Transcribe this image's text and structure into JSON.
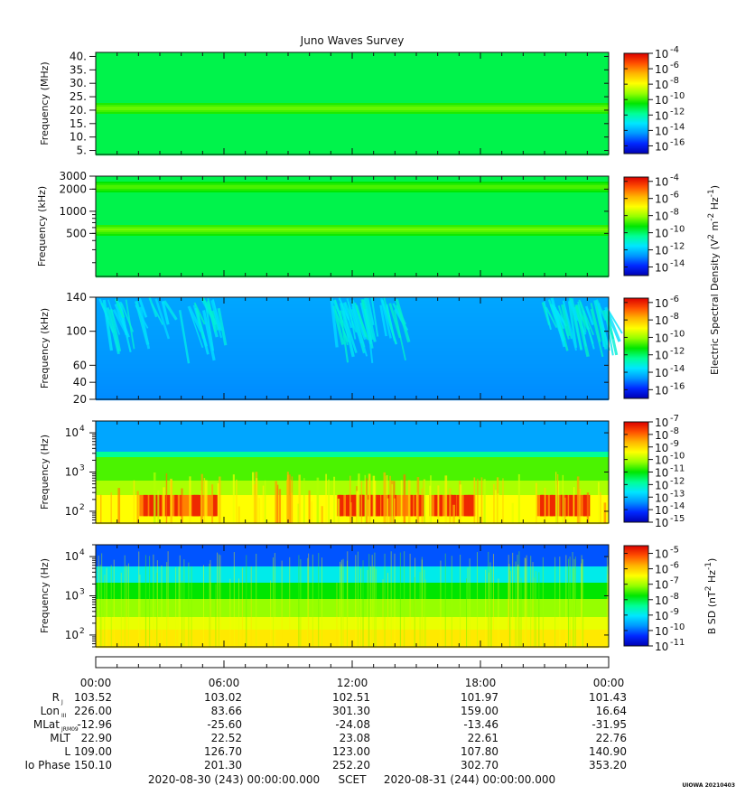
{
  "title": "Juno Waves Survey",
  "stamp": "UIOWA 20210403",
  "colors": {
    "scale": [
      "#0000b4",
      "#0028ff",
      "#0096ff",
      "#00e6ff",
      "#00ff96",
      "#00e600",
      "#96ff00",
      "#ffff00",
      "#ffb400",
      "#ff5000",
      "#dc0000"
    ]
  },
  "chart_data": [
    {
      "type": "heatmap",
      "ylabel": "Frequency (MHz)",
      "yscale": "linear",
      "ylim": [
        3.5,
        41.5
      ],
      "yticks": [
        "5.",
        "10.",
        "15.",
        "20.",
        "25.",
        "30.",
        "35.",
        "40."
      ],
      "ytick_values": [
        5,
        10,
        15,
        20,
        25,
        30,
        35,
        40
      ],
      "colorbar": {
        "ticks": [
          "-4",
          "-6",
          "-8",
          "-10",
          "-12",
          "-14",
          "-16"
        ],
        "range": [
          -17,
          -4
        ]
      },
      "background_level": 0.45,
      "bands": [
        {
          "y": 21,
          "level": 0.58
        }
      ]
    },
    {
      "type": "heatmap",
      "ylabel": "Frequency (kHz)",
      "yscale": "log",
      "ylim": [
        130,
        3000
      ],
      "yticks": [
        "3000",
        "2000",
        "1000",
        "500"
      ],
      "ytick_values": [
        3000,
        2000,
        1000,
        500
      ],
      "colorbar": {
        "ticks": [
          "-4",
          "-6",
          "-8",
          "-10",
          "-12",
          "-14"
        ],
        "range": [
          -15,
          -3.5
        ]
      },
      "colorbar_label": {
        "main": "Electric Spectral Density (V",
        "exp1": "2",
        "mid": " m",
        "exp2": "-2",
        "mid2": " Hz",
        "exp3": "-1",
        "end": ")"
      },
      "background_level": 0.45,
      "bands": [
        {
          "y": 2200,
          "level": 0.56
        },
        {
          "y": 580,
          "level": 0.58
        }
      ]
    },
    {
      "type": "heatmap",
      "ylabel": "Frequency (kHz)",
      "yscale": "linear",
      "ylim": [
        20,
        140
      ],
      "yticks": [
        "140",
        "100",
        "60",
        "40",
        "20"
      ],
      "ytick_values": [
        140,
        100,
        60,
        40,
        20
      ],
      "colorbar": {
        "ticks": [
          "-6",
          "-8",
          "-10",
          "-12",
          "-14",
          "-16"
        ],
        "range": [
          -17,
          -5.5
        ]
      },
      "background_level": 0.19
    },
    {
      "type": "heatmap",
      "ylabel": "Frequency (Hz)",
      "yscale": "log",
      "ylim": [
        50,
        20000
      ],
      "yticks": [
        "10",
        "10",
        "10"
      ],
      "ytick_exps": [
        "4",
        "3",
        "2"
      ],
      "ytick_values": [
        10000,
        1000,
        100
      ],
      "colorbar": {
        "ticks": [
          "-7",
          "-8",
          "-9",
          "-10",
          "-11",
          "-12",
          "-13",
          "-14",
          "-15"
        ],
        "range": [
          -15,
          -7
        ]
      }
    },
    {
      "type": "heatmap",
      "ylabel": "Frequency (Hz)",
      "yscale": "log",
      "ylim": [
        50,
        20000
      ],
      "yticks": [
        "10",
        "10",
        "10"
      ],
      "ytick_exps": [
        "4",
        "3",
        "2"
      ],
      "ytick_values": [
        10000,
        1000,
        100
      ],
      "colorbar": {
        "ticks": [
          "-5",
          "-6",
          "-7",
          "-8",
          "-9",
          "-10",
          "-11"
        ],
        "range": [
          -11,
          -4.5
        ]
      },
      "colorbar_label": {
        "main": "B SD (nT",
        "exp1": "2",
        "mid": " Hz",
        "exp2": "-1",
        "end": ")"
      }
    }
  ],
  "time_axis": {
    "labels": [
      "00:00",
      "06:00",
      "12:00",
      "18:00",
      "00:00"
    ],
    "hours": [
      0,
      6,
      12,
      18,
      24
    ]
  },
  "ephemeris": [
    {
      "label": "R",
      "sub": "J",
      "values": [
        "103.52",
        "103.02",
        "102.51",
        "101.97",
        "101.43"
      ]
    },
    {
      "label": "Lon",
      "sub": "III",
      "values": [
        "226.00",
        "83.66",
        "301.30",
        "159.00",
        "16.64"
      ]
    },
    {
      "label": "MLat",
      "sub": "JRM09",
      "values": [
        "-12.96",
        "-25.60",
        "-24.08",
        "-13.46",
        "-31.95"
      ]
    },
    {
      "label": "MLT",
      "sub": "",
      "values": [
        "22.90",
        "22.52",
        "23.08",
        "22.61",
        "22.76"
      ]
    },
    {
      "label": "L",
      "sub": "",
      "values": [
        "109.00",
        "126.70",
        "123.00",
        "107.80",
        "140.90"
      ]
    },
    {
      "label": "Io Phase",
      "sub": "",
      "values": [
        "150.10",
        "201.30",
        "252.20",
        "302.70",
        "353.20"
      ]
    }
  ],
  "footer": {
    "start": "2020-08-30 (243) 00:00:00.000",
    "scet": "SCET",
    "end": "2020-08-31 (244) 00:00:00.000"
  }
}
